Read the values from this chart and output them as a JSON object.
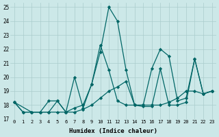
{
  "xlabel": "Humidex (Indice chaleur)",
  "xlim": [
    -0.5,
    23.5
  ],
  "ylim": [
    17,
    25.3
  ],
  "yticks": [
    17,
    18,
    19,
    20,
    21,
    22,
    23,
    24,
    25
  ],
  "xticks": [
    0,
    1,
    2,
    3,
    4,
    5,
    6,
    7,
    8,
    9,
    10,
    11,
    12,
    13,
    14,
    15,
    16,
    17,
    18,
    19,
    20,
    21,
    22,
    23
  ],
  "bg_color": "#cce8e8",
  "grid_color": "#aacccc",
  "line_color": "#006666",
  "series": [
    {
      "x": [
        0,
        1,
        2,
        3,
        4,
        5,
        6,
        7,
        8,
        9,
        10,
        11,
        12,
        13,
        14,
        15,
        16,
        17,
        18,
        19,
        20,
        21,
        22,
        23
      ],
      "y": [
        18.2,
        17.5,
        17.5,
        17.5,
        17.5,
        17.5,
        17.5,
        17.5,
        17.7,
        18.0,
        18.5,
        19.0,
        19.3,
        19.7,
        18.0,
        18.0,
        18.0,
        18.0,
        18.2,
        18.5,
        19.0,
        19.0,
        18.8,
        19.0
      ]
    },
    {
      "x": [
        0,
        1,
        2,
        3,
        4,
        5,
        6,
        7,
        8,
        9,
        10,
        11,
        12,
        13,
        14,
        15,
        16,
        17,
        18,
        19,
        20,
        21,
        22,
        23
      ],
      "y": [
        18.2,
        17.5,
        17.5,
        17.5,
        18.3,
        18.3,
        17.5,
        20.0,
        17.8,
        19.5,
        21.8,
        25.0,
        24.0,
        20.5,
        18.0,
        17.9,
        17.9,
        20.6,
        18.0,
        18.0,
        18.2,
        21.3,
        18.8,
        19.0
      ]
    },
    {
      "x": [
        0,
        2,
        3,
        4,
        5,
        6,
        7,
        8,
        9,
        10,
        11,
        12,
        13,
        14,
        15,
        16,
        17,
        18,
        19,
        20,
        21,
        22,
        23
      ],
      "y": [
        18.2,
        17.5,
        17.5,
        17.5,
        18.3,
        17.5,
        17.8,
        18.0,
        19.5,
        22.3,
        20.5,
        18.3,
        18.0,
        18.0,
        18.0,
        20.6,
        22.0,
        21.5,
        18.3,
        18.5,
        21.3,
        18.8,
        19.0
      ]
    }
  ]
}
